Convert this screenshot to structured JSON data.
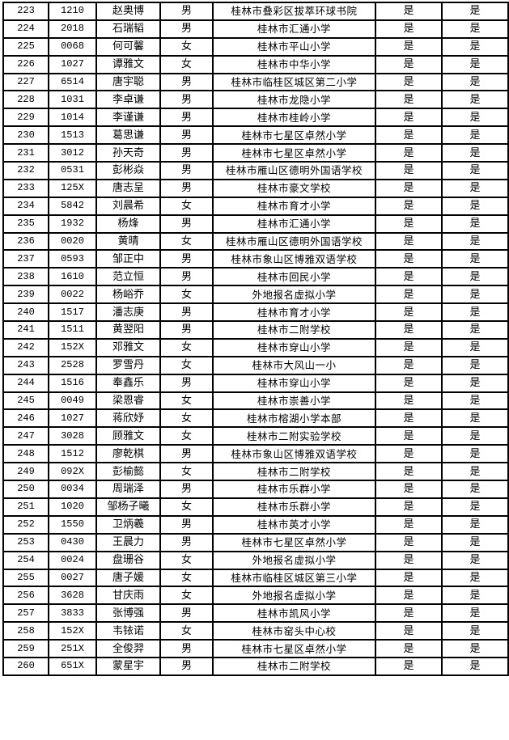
{
  "rows": [
    [
      "223",
      "1210",
      "赵奥博",
      "男",
      "桂林市叠彩区拔萃环球书院",
      "是",
      "是"
    ],
    [
      "224",
      "2018",
      "石瑞韬",
      "男",
      "桂林市汇通小学",
      "是",
      "是"
    ],
    [
      "225",
      "0068",
      "何可馨",
      "女",
      "桂林市平山小学",
      "是",
      "是"
    ],
    [
      "226",
      "1027",
      "谭雅文",
      "女",
      "桂林市中华小学",
      "是",
      "是"
    ],
    [
      "227",
      "6514",
      "唐宇聪",
      "男",
      "桂林市临桂区城区第二小学",
      "是",
      "是"
    ],
    [
      "228",
      "1031",
      "李卓谦",
      "男",
      "桂林市龙隐小学",
      "是",
      "是"
    ],
    [
      "229",
      "1014",
      "李谨谦",
      "男",
      "桂林市桂岭小学",
      "是",
      "是"
    ],
    [
      "230",
      "1513",
      "葛思谦",
      "男",
      "桂林市七星区卓然小学",
      "是",
      "是"
    ],
    [
      "231",
      "3012",
      "孙天奇",
      "男",
      "桂林市七星区卓然小学",
      "是",
      "是"
    ],
    [
      "232",
      "0531",
      "彭彬焱",
      "男",
      "桂林市雁山区德明外国语学校",
      "是",
      "是"
    ],
    [
      "233",
      "125X",
      "唐志呈",
      "男",
      "桂林市豪文学校",
      "是",
      "是"
    ],
    [
      "234",
      "5842",
      "刘晨希",
      "女",
      "桂林市育才小学",
      "是",
      "是"
    ],
    [
      "235",
      "1932",
      "杨烽",
      "男",
      "桂林市汇通小学",
      "是",
      "是"
    ],
    [
      "236",
      "0020",
      "黄晴",
      "女",
      "桂林市雁山区德明外国语学校",
      "是",
      "是"
    ],
    [
      "237",
      "0593",
      "邹正中",
      "男",
      "桂林市象山区博雅双语学校",
      "是",
      "是"
    ],
    [
      "238",
      "1610",
      "范立恒",
      "男",
      "桂林市回民小学",
      "是",
      "是"
    ],
    [
      "239",
      "0022",
      "杨峪乔",
      "女",
      "外地报名虚拟小学",
      "是",
      "是"
    ],
    [
      "240",
      "1517",
      "潘志庚",
      "男",
      "桂林市育才小学",
      "是",
      "是"
    ],
    [
      "241",
      "1511",
      "黄翌阳",
      "男",
      "桂林市二附学校",
      "是",
      "是"
    ],
    [
      "242",
      "152X",
      "邓雅文",
      "女",
      "桂林市穿山小学",
      "是",
      "是"
    ],
    [
      "243",
      "2528",
      "罗雪丹",
      "女",
      "桂林市大风山一小",
      "是",
      "是"
    ],
    [
      "244",
      "1516",
      "奉鑫乐",
      "男",
      "桂林市穿山小学",
      "是",
      "是"
    ],
    [
      "245",
      "0049",
      "梁恩睿",
      "女",
      "桂林市崇善小学",
      "是",
      "是"
    ],
    [
      "246",
      "1027",
      "蒋欣妤",
      "女",
      "桂林市榕湖小学本部",
      "是",
      "是"
    ],
    [
      "247",
      "3028",
      "顾雅文",
      "女",
      "桂林市二附实验学校",
      "是",
      "是"
    ],
    [
      "248",
      "1512",
      "廖乾棋",
      "男",
      "桂林市象山区博雅双语学校",
      "是",
      "是"
    ],
    [
      "249",
      "092X",
      "彭榆懿",
      "女",
      "桂林市二附学校",
      "是",
      "是"
    ],
    [
      "250",
      "0034",
      "周瑞泽",
      "男",
      "桂林市乐群小学",
      "是",
      "是"
    ],
    [
      "251",
      "1020",
      "邹杨子曦",
      "女",
      "桂林市乐群小学",
      "是",
      "是"
    ],
    [
      "252",
      "1550",
      "卫炳羲",
      "男",
      "桂林市英才小学",
      "是",
      "是"
    ],
    [
      "253",
      "0430",
      "王晨力",
      "男",
      "桂林市七星区卓然小学",
      "是",
      "是"
    ],
    [
      "254",
      "0024",
      "盘珊谷",
      "女",
      "外地报名虚拟小学",
      "是",
      "是"
    ],
    [
      "255",
      "0027",
      "唐子媛",
      "女",
      "桂林市临桂区城区第三小学",
      "是",
      "是"
    ],
    [
      "256",
      "3628",
      "甘庆雨",
      "女",
      "外地报名虚拟小学",
      "是",
      "是"
    ],
    [
      "257",
      "3833",
      "张博强",
      "男",
      "桂林市凯风小学",
      "是",
      "是"
    ],
    [
      "258",
      "152X",
      "韦铱诺",
      "女",
      "桂林市窑头中心校",
      "是",
      "是"
    ],
    [
      "259",
      "251X",
      "全俊羿",
      "男",
      "桂林市七星区卓然小学",
      "是",
      "是"
    ],
    [
      "260",
      "651X",
      "蒙星宇",
      "男",
      "桂林市二附学校",
      "是",
      "是"
    ]
  ]
}
